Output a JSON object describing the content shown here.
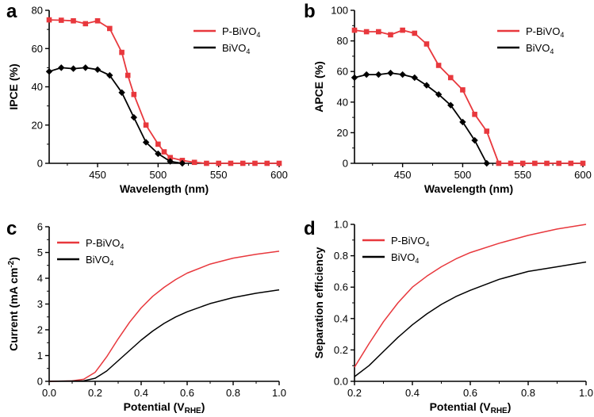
{
  "chart_data": [
    {
      "panel": "a",
      "type": "line",
      "xlabel": "Wavelength (nm)",
      "ylabel": "IPCE (%)",
      "xlim": [
        410,
        600
      ],
      "ylim": [
        0,
        80
      ],
      "xticks": [
        450,
        500,
        550,
        600
      ],
      "yticks": [
        0,
        20,
        40,
        60,
        80
      ],
      "legend_position": "top-right",
      "series": [
        {
          "name": "P-BiVO",
          "sub": "4",
          "color": "#e8383d",
          "marker": "square",
          "x": [
            410,
            420,
            430,
            440,
            450,
            460,
            470,
            475,
            480,
            490,
            500,
            505,
            510,
            520,
            530,
            540,
            550,
            560,
            570,
            580,
            590,
            600
          ],
          "y": [
            75,
            74.8,
            74.5,
            73,
            74.5,
            70.5,
            58,
            46,
            36,
            20,
            10,
            6,
            3,
            1.5,
            0.5,
            0,
            0,
            0,
            0,
            0,
            0,
            0
          ]
        },
        {
          "name": "BiVO",
          "sub": "4",
          "color": "#000000",
          "marker": "diamond",
          "x": [
            410,
            420,
            430,
            440,
            450,
            460,
            470,
            480,
            490,
            500,
            510,
            520
          ],
          "y": [
            48,
            50,
            49.5,
            50,
            49,
            46,
            37,
            24,
            11,
            5,
            1,
            0
          ]
        }
      ]
    },
    {
      "panel": "b",
      "type": "line",
      "xlabel": "Wavelength (nm)",
      "ylabel": "APCE (%)",
      "xlim": [
        410,
        600
      ],
      "ylim": [
        0,
        100
      ],
      "xticks": [
        450,
        500,
        550,
        600
      ],
      "yticks": [
        0,
        20,
        40,
        60,
        80,
        100
      ],
      "legend_position": "top-right",
      "series": [
        {
          "name": "P-BiVO",
          "sub": "4",
          "color": "#e8383d",
          "marker": "square",
          "x": [
            410,
            420,
            430,
            440,
            450,
            460,
            470,
            480,
            490,
            500,
            510,
            520,
            530,
            540,
            550,
            560,
            570,
            580,
            590,
            600
          ],
          "y": [
            87,
            86,
            86,
            84,
            87,
            85,
            78,
            64,
            56,
            48,
            32,
            21,
            0,
            0,
            0,
            0,
            0,
            0,
            0,
            0
          ]
        },
        {
          "name": "BiVO",
          "sub": "4",
          "color": "#000000",
          "marker": "diamond",
          "x": [
            410,
            420,
            430,
            440,
            450,
            460,
            470,
            480,
            490,
            500,
            510,
            520
          ],
          "y": [
            56,
            58,
            58,
            59,
            58,
            56,
            51,
            45,
            38,
            27,
            15,
            0
          ]
        }
      ]
    },
    {
      "panel": "c",
      "type": "line",
      "xlabel": "Potential (V",
      "xlabel_sub": "RHE",
      "xlabel_end": ")",
      "ylabel": "Current (mA cm",
      "ylabel_sup": "-2",
      "ylabel_end": ")",
      "xlim": [
        0,
        1.0
      ],
      "ylim": [
        0,
        6
      ],
      "xticks": [
        "0.0",
        "0.2",
        "0.4",
        "0.6",
        "0.8",
        "1.0"
      ],
      "yticks": [
        0,
        1,
        2,
        3,
        4,
        5,
        6
      ],
      "legend_position": "top-left",
      "series": [
        {
          "name": "P-BiVO",
          "sub": "4",
          "color": "#e8383d",
          "x": [
            0,
            0.1,
            0.15,
            0.2,
            0.25,
            0.3,
            0.35,
            0.4,
            0.45,
            0.5,
            0.55,
            0.6,
            0.7,
            0.8,
            0.9,
            1.0
          ],
          "y": [
            0,
            0.02,
            0.08,
            0.35,
            0.95,
            1.65,
            2.3,
            2.85,
            3.3,
            3.65,
            3.95,
            4.2,
            4.55,
            4.78,
            4.93,
            5.05
          ]
        },
        {
          "name": "BiVO",
          "sub": "4",
          "color": "#000000",
          "x": [
            0,
            0.15,
            0.2,
            0.25,
            0.3,
            0.35,
            0.4,
            0.45,
            0.5,
            0.55,
            0.6,
            0.7,
            0.8,
            0.9,
            1.0
          ],
          "y": [
            0,
            0.02,
            0.12,
            0.4,
            0.8,
            1.2,
            1.6,
            1.95,
            2.25,
            2.5,
            2.7,
            3.02,
            3.25,
            3.42,
            3.55
          ]
        }
      ]
    },
    {
      "panel": "d",
      "type": "line",
      "xlabel": "Potential (V",
      "xlabel_sub": "RHE",
      "xlabel_end": ")",
      "ylabel": "Separation efficiency",
      "xlim": [
        0.2,
        1.0
      ],
      "ylim": [
        0,
        1.0
      ],
      "xticks": [
        "0.2",
        "0.4",
        "0.6",
        "0.8",
        "1.0"
      ],
      "yticks": [
        "0.0",
        "0.2",
        "0.4",
        "0.6",
        "0.8",
        "1.0"
      ],
      "legend_position": "top-left",
      "series": [
        {
          "name": "P-BiVO",
          "sub": "4",
          "color": "#e8383d",
          "x": [
            0.2,
            0.25,
            0.3,
            0.35,
            0.4,
            0.45,
            0.5,
            0.55,
            0.6,
            0.7,
            0.8,
            0.9,
            1.0
          ],
          "y": [
            0.09,
            0.24,
            0.38,
            0.5,
            0.6,
            0.67,
            0.73,
            0.78,
            0.82,
            0.88,
            0.93,
            0.97,
            1.0
          ]
        },
        {
          "name": "BiVO",
          "sub": "4",
          "color": "#000000",
          "x": [
            0.2,
            0.25,
            0.3,
            0.35,
            0.4,
            0.45,
            0.5,
            0.55,
            0.6,
            0.7,
            0.8,
            0.9,
            1.0
          ],
          "y": [
            0.03,
            0.1,
            0.19,
            0.28,
            0.36,
            0.43,
            0.49,
            0.54,
            0.58,
            0.65,
            0.7,
            0.73,
            0.76
          ]
        }
      ]
    }
  ]
}
